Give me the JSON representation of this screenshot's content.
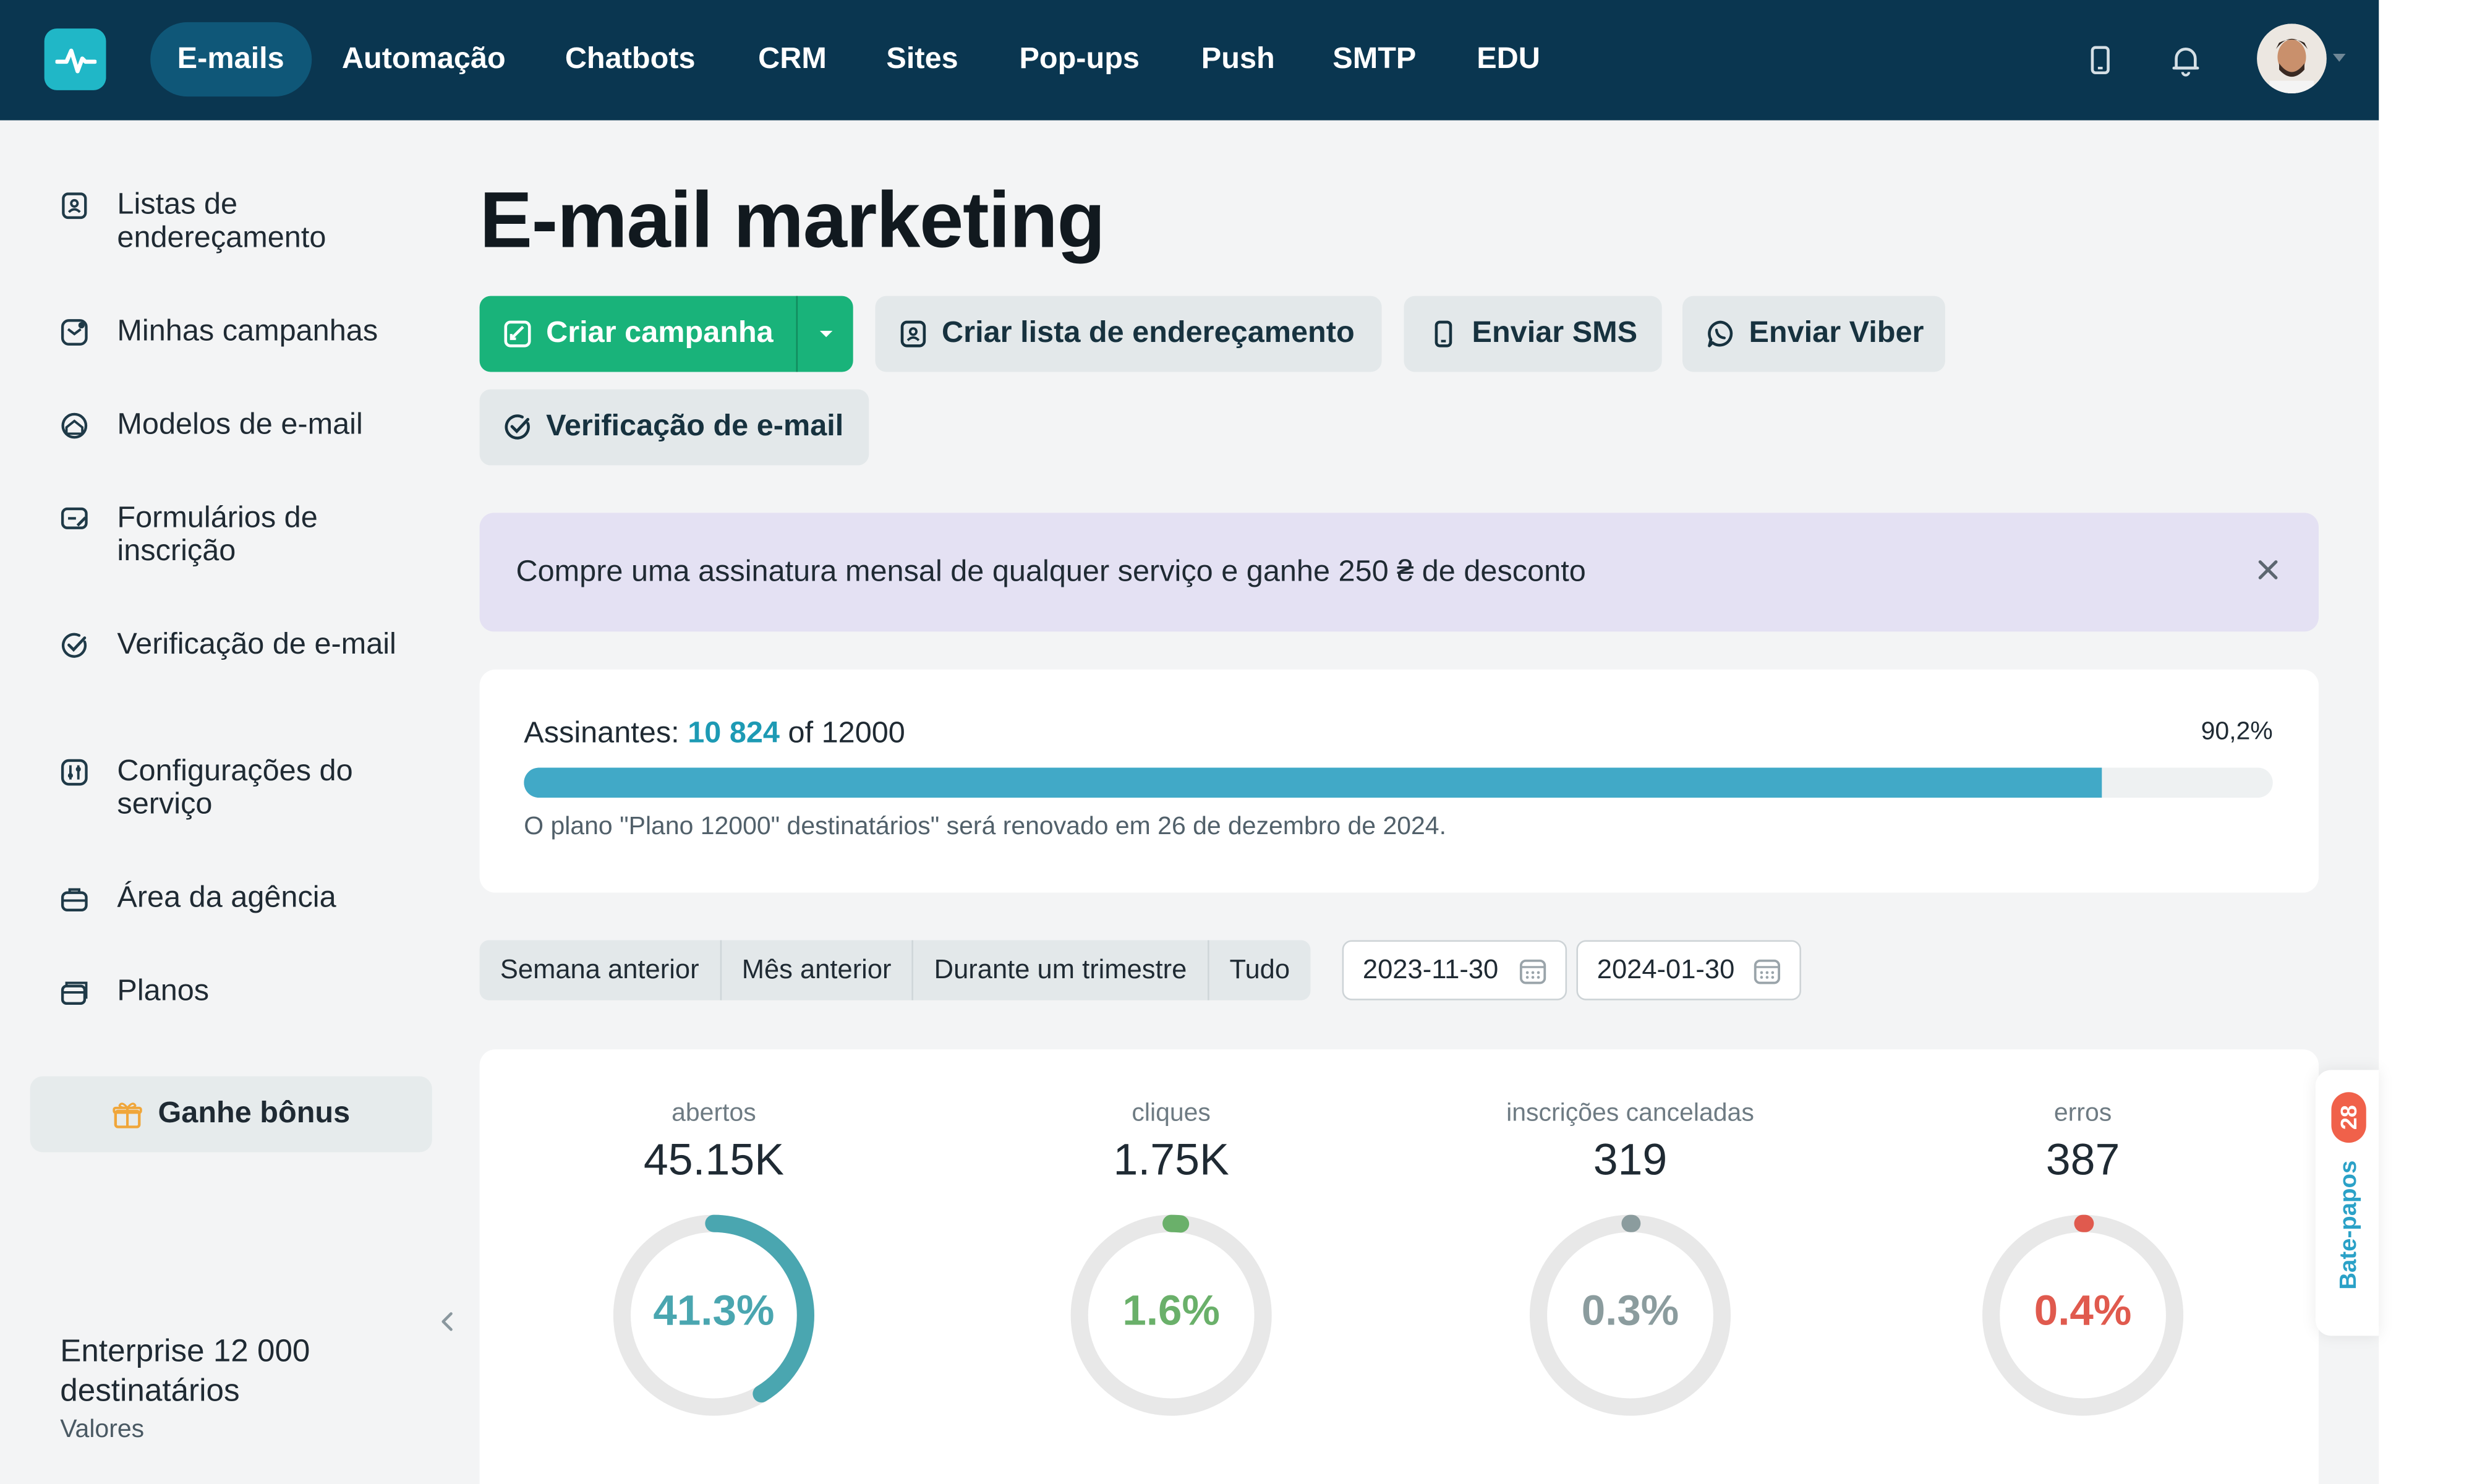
{
  "nav": {
    "items": [
      {
        "label": "E-mails",
        "active": true
      },
      {
        "label": "Automação"
      },
      {
        "label": "Chatbots"
      },
      {
        "label": "CRM"
      },
      {
        "label": "Sites"
      },
      {
        "label": "Pop-ups"
      },
      {
        "label": "Push"
      },
      {
        "label": "SMTP"
      },
      {
        "label": "EDU"
      }
    ],
    "icons": [
      "phone-icon",
      "bell-icon",
      "avatar"
    ]
  },
  "sidebar": {
    "items": [
      {
        "label": "Listas de endereçamento",
        "icon": "address-book-icon"
      },
      {
        "label": "Minhas campanhas",
        "icon": "campaign-icon"
      },
      {
        "label": "Modelos de e-mail",
        "icon": "template-icon"
      },
      {
        "label": "Formulários de inscrição",
        "icon": "form-icon"
      },
      {
        "label": "Verificação de e-mail",
        "icon": "check-circle-icon"
      },
      {
        "label": "Configurações do serviço",
        "icon": "settings-icon"
      },
      {
        "label": "Área da agência",
        "icon": "briefcase-icon"
      },
      {
        "label": "Planos",
        "icon": "wallet-icon"
      }
    ],
    "bonus_label": "Ganhe bônus",
    "plan_name": "Enterprise 12 000 destinatários",
    "plan_link": "Valores"
  },
  "main": {
    "title": "E-mail marketing",
    "buttons": {
      "create_campaign": "Criar campanha",
      "create_list": "Criar lista de endereçamento",
      "send_sms": "Enviar SMS",
      "send_viber": "Enviar Viber",
      "email_verification": "Verificação de e-mail"
    },
    "promo": "Compre uma assinatura mensal de qualquer serviço e ganhe 250 ₴ de desconto",
    "subscribers": {
      "label": "Assinantes:",
      "count": "10 824",
      "total_text": "of 12000",
      "percent_text": "90,2%",
      "progress_fraction": 0.902,
      "renewal": "O plano \"Plano 12000\" destinatários\" será renovado em 26 de dezembro de 2024."
    },
    "filters": [
      "Semana anterior",
      "Mês anterior",
      "Durante um trimestre",
      "Tudo"
    ],
    "date_from": "2023-11-30",
    "date_to": "2024-01-30",
    "stats": [
      {
        "label": "abertos",
        "value": "45.15K",
        "percent": "41.3%",
        "fraction": 0.413,
        "color": "#4aa6b0"
      },
      {
        "label": "cliques",
        "value": "1.75K",
        "percent": "1.6%",
        "fraction": 0.016,
        "color": "#6ab06a"
      },
      {
        "label": "inscrições canceladas",
        "value": "319",
        "percent": "0.3%",
        "fraction": 0.003,
        "color": "#8b9c9e"
      },
      {
        "label": "erros",
        "value": "387",
        "percent": "0.4%",
        "fraction": 0.004,
        "color": "#e05a4e"
      }
    ]
  },
  "chat": {
    "label": "Bate-papos",
    "count": "28"
  },
  "colors": {
    "nav_bg": "#0a3650",
    "primary": "#19b37a",
    "accent": "#1d9ab4",
    "promo_bg": "#e4e1f3"
  }
}
